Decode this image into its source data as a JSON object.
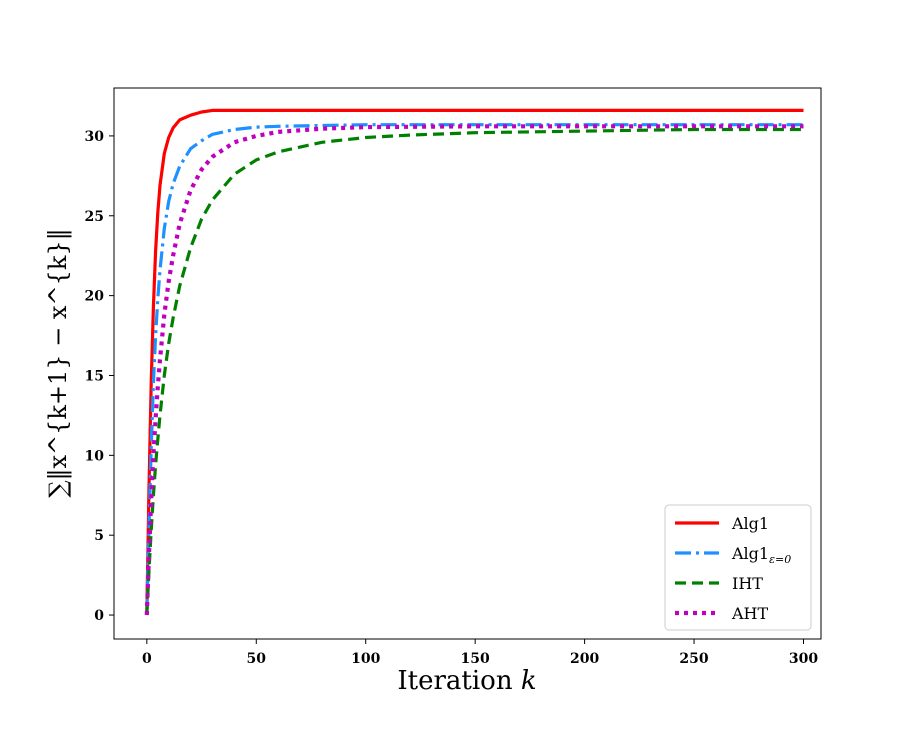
{
  "chart_data": {
    "type": "line",
    "title": "",
    "xlabel": "Iteration",
    "xlabel_var": "k",
    "ylabel": "∑‖x^{k+1} − x^{k}‖",
    "xlim": [
      -15,
      308
    ],
    "ylim": [
      -1.5,
      33
    ],
    "xticks": [
      0,
      50,
      100,
      150,
      200,
      250,
      300
    ],
    "yticks": [
      0,
      5,
      10,
      15,
      20,
      25,
      30
    ],
    "grid": false,
    "legend_position": "lower-right",
    "series": [
      {
        "name": "Alg1",
        "color": "#ff0000",
        "style": "solid",
        "x": [
          0,
          1,
          2,
          3,
          4,
          5,
          6,
          8,
          10,
          12,
          15,
          20,
          25,
          30,
          40,
          60,
          100,
          150,
          200,
          250,
          300
        ],
        "y": [
          0,
          8,
          14.5,
          19.3,
          22.8,
          25.2,
          26.9,
          28.9,
          29.9,
          30.5,
          31.0,
          31.3,
          31.5,
          31.6,
          31.6,
          31.6,
          31.6,
          31.6,
          31.6,
          31.6,
          31.6
        ]
      },
      {
        "name": "Alg1",
        "name_subscript": "ε=0",
        "color": "#1e90ff",
        "style": "dashdot",
        "x": [
          0,
          1,
          2,
          3,
          4,
          5,
          6,
          8,
          10,
          12,
          15,
          20,
          25,
          30,
          40,
          50,
          60,
          80,
          100,
          150,
          200,
          250,
          300
        ],
        "y": [
          0,
          5.5,
          10.5,
          14.5,
          17.5,
          19.8,
          21.6,
          24.2,
          25.9,
          27.0,
          28.1,
          29.2,
          29.7,
          30.1,
          30.4,
          30.55,
          30.6,
          30.65,
          30.7,
          30.7,
          30.7,
          30.7,
          30.7
        ]
      },
      {
        "name": "IHT",
        "color": "#008000",
        "style": "dashed",
        "x": [
          0,
          1,
          2,
          3,
          4,
          5,
          6,
          8,
          10,
          12,
          15,
          20,
          25,
          30,
          40,
          50,
          60,
          80,
          100,
          120,
          150,
          200,
          250,
          300
        ],
        "y": [
          0,
          2.8,
          5.3,
          7.5,
          9.4,
          11.0,
          12.5,
          15.0,
          17.0,
          18.6,
          20.6,
          23.0,
          24.8,
          26.0,
          27.6,
          28.5,
          29.0,
          29.6,
          29.9,
          30.05,
          30.2,
          30.3,
          30.4,
          30.4
        ]
      },
      {
        "name": "AHT",
        "color": "#bf00bf",
        "style": "dotted",
        "x": [
          0,
          1,
          2,
          3,
          4,
          5,
          6,
          8,
          10,
          12,
          15,
          20,
          25,
          30,
          40,
          50,
          60,
          80,
          100,
          150,
          200,
          250,
          300
        ],
        "y": [
          0,
          3.8,
          7.2,
          10.0,
          12.3,
          14.3,
          16.0,
          18.8,
          20.9,
          22.5,
          24.5,
          26.6,
          27.9,
          28.7,
          29.6,
          30.0,
          30.25,
          30.45,
          30.55,
          30.6,
          30.6,
          30.6,
          30.6
        ]
      }
    ]
  }
}
